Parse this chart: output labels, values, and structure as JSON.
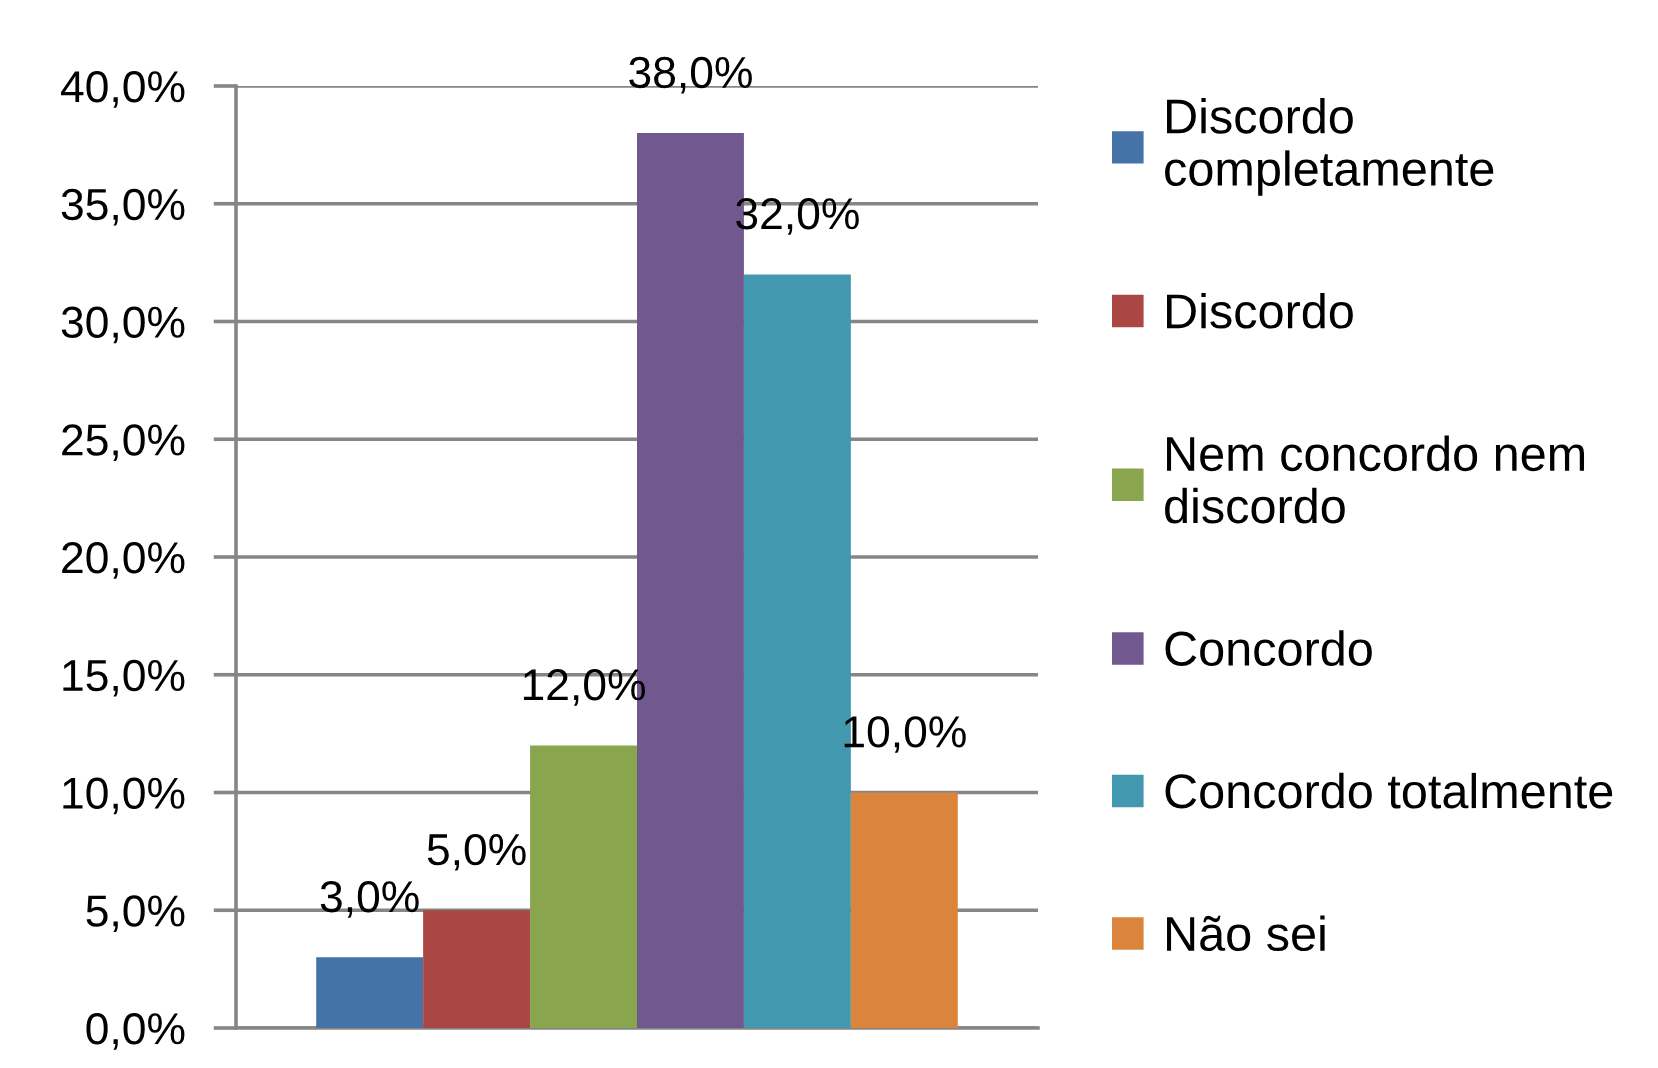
{
  "chart_data": {
    "type": "bar",
    "categories": [
      null
    ],
    "series": [
      {
        "name": "Discordo completamente",
        "color": "#4572a7",
        "values": [
          3.0
        ],
        "value_labels": [
          "3,0%"
        ]
      },
      {
        "name": "Discordo",
        "color": "#aa4643",
        "values": [
          5.0
        ],
        "value_labels": [
          "5,0%"
        ]
      },
      {
        "name": "Nem concordo nem discordo",
        "color": "#89a54e",
        "values": [
          12.0
        ],
        "value_labels": [
          "12,0%"
        ]
      },
      {
        "name": "Concordo",
        "color": "#71588f",
        "values": [
          38.0
        ],
        "value_labels": [
          "38,0%"
        ]
      },
      {
        "name": "Concordo totalmente",
        "color": "#4198af",
        "values": [
          32.0
        ],
        "value_labels": [
          "32,0%"
        ]
      },
      {
        "name": "Não sei",
        "color": "#db843d",
        "values": [
          10.0
        ],
        "value_labels": [
          "10,0%"
        ]
      }
    ],
    "ylim": [
      0,
      40
    ],
    "yticks": [
      {
        "value": 0,
        "label": "0,0%"
      },
      {
        "value": 5,
        "label": "5,0%"
      },
      {
        "value": 10,
        "label": "10,0%"
      },
      {
        "value": 15,
        "label": "15,0%"
      },
      {
        "value": 20,
        "label": "20,0%"
      },
      {
        "value": 25,
        "label": "25,0%"
      },
      {
        "value": 30,
        "label": "30,0%"
      },
      {
        "value": 35,
        "label": "35,0%"
      },
      {
        "value": 40,
        "label": "40,0%"
      }
    ],
    "grid": "y",
    "legend": "right",
    "tick_labels": "y"
  }
}
